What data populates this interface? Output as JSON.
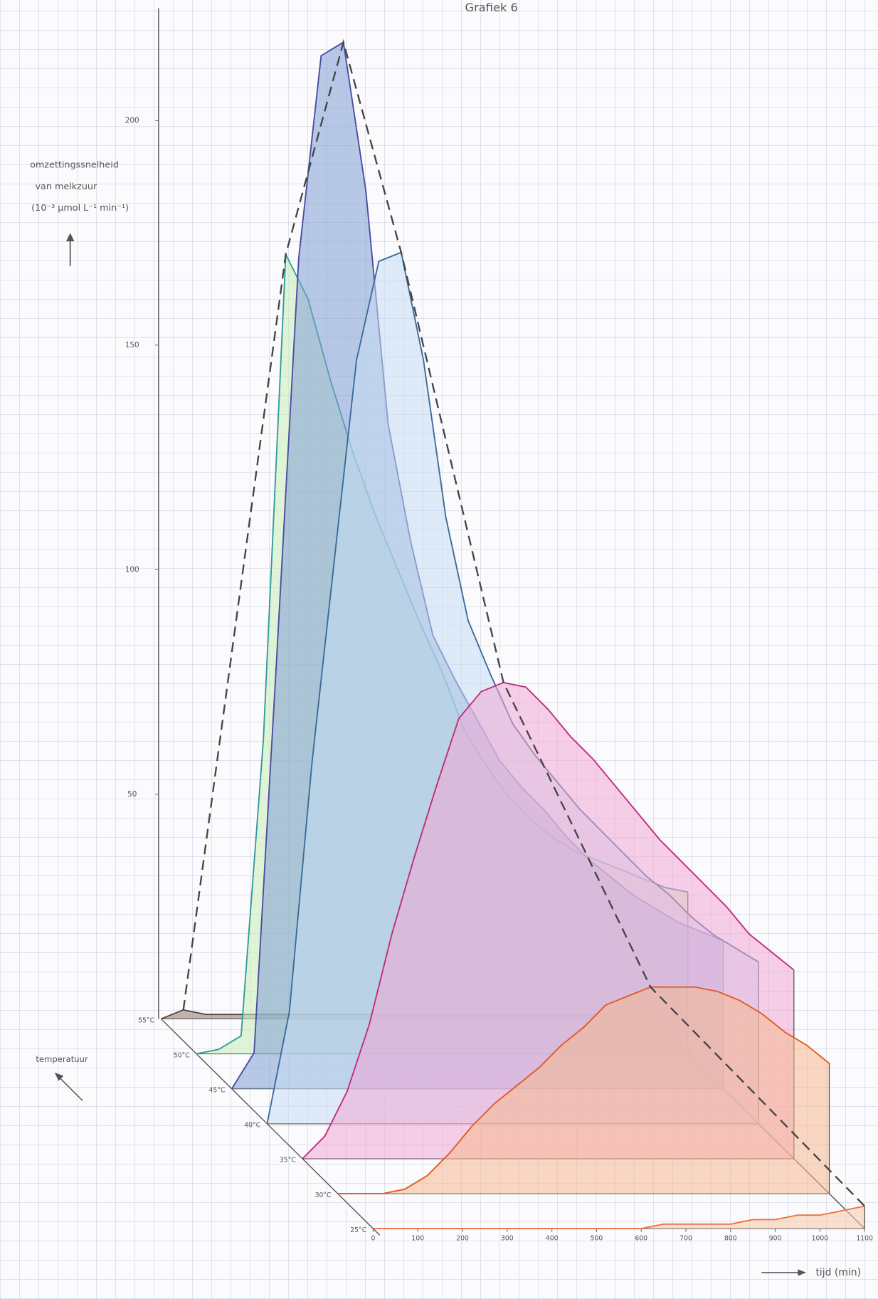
{
  "chart_data": {
    "type": "line",
    "title": "Grafiek 6",
    "y_label": [
      "omzettingssnelheid",
      "van melkzuur",
      "(10⁻³ µmol L⁻¹ min⁻¹)"
    ],
    "z_label": "temperatuur",
    "x_label": "tijd (min)",
    "xlim": [
      0,
      1100
    ],
    "xticks": [
      0,
      100,
      200,
      300,
      400,
      500,
      600,
      700,
      800,
      900,
      1000,
      1100
    ],
    "ylim": [
      0,
      225
    ],
    "yticks": [
      50,
      100,
      150,
      200
    ],
    "x": [
      0,
      50,
      100,
      150,
      200,
      250,
      300,
      350,
      400,
      450,
      500,
      550,
      600,
      650,
      700,
      750,
      800,
      850,
      900,
      950,
      1000,
      1050,
      1100
    ],
    "series": [
      {
        "name": "55°C",
        "color": "#5a4a40",
        "fill": "#8a7a70",
        "values": [
          0,
          2,
          1,
          1,
          1,
          1,
          1,
          1,
          1,
          1,
          1,
          1,
          1,
          1,
          1,
          1,
          1,
          1,
          1,
          1,
          1,
          1,
          1
        ]
      },
      {
        "name": "50°C",
        "color": "#2f9a9a",
        "fill": "#c8ecb8",
        "values": [
          0,
          1,
          4,
          70,
          178,
          168,
          150,
          134,
          120,
          108,
          96,
          85,
          72,
          64,
          57,
          52,
          48,
          45,
          43,
          41,
          39,
          37,
          36
        ]
      },
      {
        "name": "45°C",
        "color": "#4a4aa0",
        "fill": "#7f9fd6",
        "values": [
          0,
          8,
          95,
          185,
          230,
          233,
          200,
          148,
          122,
          101,
          91,
          82,
          73,
          67,
          62,
          56,
          51,
          47,
          43,
          40,
          37,
          35,
          33
        ]
      },
      {
        "name": "40°C",
        "color": "#3a6a9a",
        "fill": "#c6dcf2",
        "values": [
          0,
          25,
          80,
          125,
          170,
          192,
          194,
          170,
          135,
          112,
          100,
          89,
          82,
          76,
          70,
          65,
          60,
          55,
          51,
          46,
          42,
          39,
          36
        ]
      },
      {
        "name": "35°C",
        "color": "#c02a7a",
        "fill": "#f0a8d4",
        "values": [
          0,
          5,
          15,
          30,
          50,
          67,
          83,
          98,
          104,
          106,
          105,
          100,
          94,
          89,
          83,
          77,
          71,
          66,
          61,
          56,
          50,
          46,
          42
        ]
      },
      {
        "name": "30°C",
        "color": "#e05a20",
        "fill": "#f5b890",
        "values": [
          0,
          0,
          0,
          1,
          4,
          9,
          15,
          20,
          24,
          28,
          33,
          37,
          42,
          44,
          46,
          46,
          46,
          45,
          43,
          40,
          36,
          33,
          29
        ]
      },
      {
        "name": "25°C",
        "color": "#f07040",
        "fill": "#f8c8a8",
        "values": [
          0,
          0,
          0,
          0,
          0,
          0,
          0,
          0,
          0,
          0,
          0,
          0,
          0,
          1,
          1,
          1,
          1,
          2,
          2,
          3,
          3,
          4,
          5
        ]
      }
    ]
  }
}
